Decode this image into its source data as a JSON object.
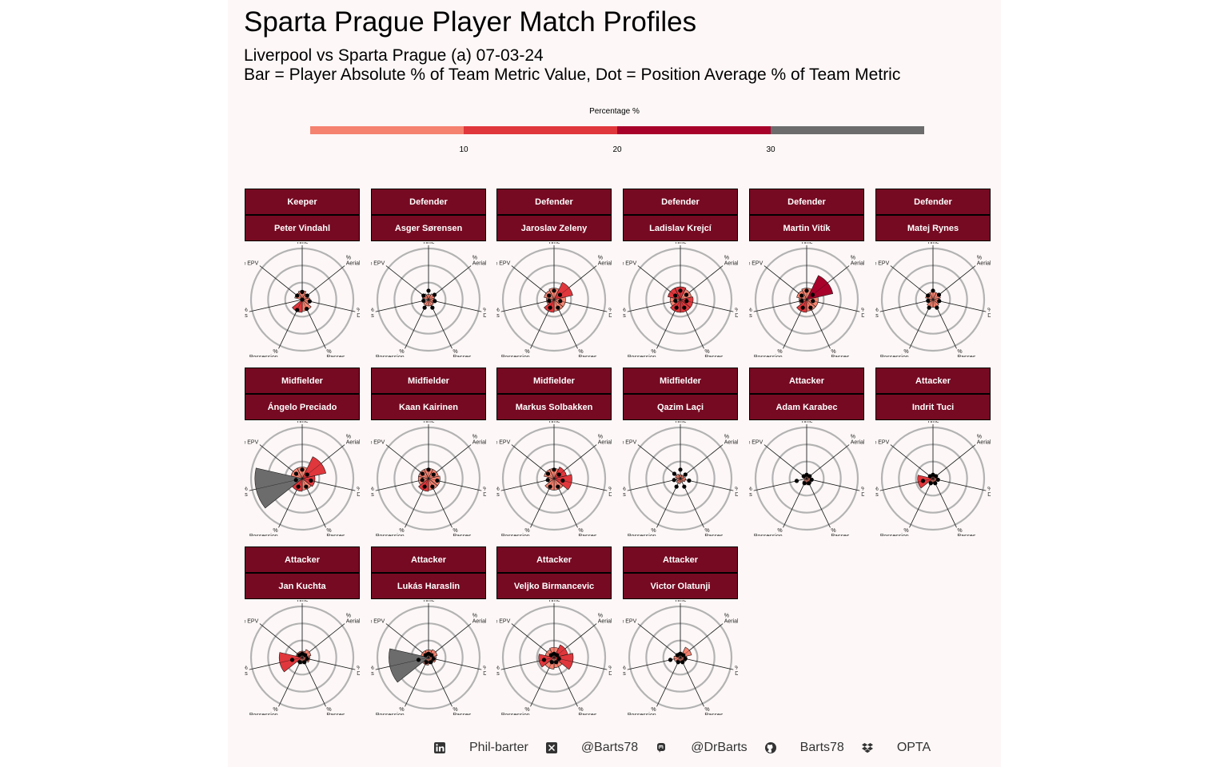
{
  "title": "Sparta Prague Player Match Profiles",
  "subtitle_line1": "Liverpool vs Sparta Prague (a) 07-03-24",
  "subtitle_line2": "Bar = Player Absolute % of Team Metric Value, Dot = Position Average % of Team Metric",
  "legend": {
    "title": "Percentage %",
    "breaks": [
      "10",
      "20",
      "30"
    ],
    "colors": [
      "#f4826f",
      "#e0373c",
      "#a8022a",
      "#6c6c6c"
    ]
  },
  "chart_data": {
    "type": "polar-bar",
    "axes": [
      "% On Ball Time",
      "% Aerials",
      "% Duels",
      "% Passes",
      "% Possession",
      "% Shots",
      "% EPV"
    ],
    "axis_short_labels": [
      "% On\nBall\nTime",
      "%\nAerials",
      "%\nDuels",
      "%\nPasses",
      "%\nPossession",
      "%\nShots",
      "% EPV"
    ],
    "value_range": [
      0,
      40
    ],
    "grid": true,
    "players": [
      {
        "position": "Keeper",
        "name": "Peter Vindahl",
        "values": [
          7,
          5,
          6,
          9,
          10,
          0,
          6
        ],
        "position_avg": [
          6,
          5,
          6,
          8,
          9,
          0,
          5
        ]
      },
      {
        "position": "Defender",
        "name": "Asger Sørensen",
        "values": [
          4,
          5,
          4,
          5,
          5,
          0,
          5
        ],
        "position_avg": [
          7,
          6,
          5,
          7,
          7,
          4,
          5
        ]
      },
      {
        "position": "Defender",
        "name": "Jaroslav Zeleny",
        "values": [
          9,
          15,
          9,
          9,
          10,
          6,
          8
        ],
        "position_avg": [
          7,
          6,
          5,
          7,
          7,
          4,
          5
        ]
      },
      {
        "position": "Defender",
        "name": "Ladislav Krejcí",
        "values": [
          10,
          9,
          10,
          10,
          10,
          8,
          10
        ],
        "position_avg": [
          7,
          6,
          5,
          7,
          7,
          4,
          5
        ]
      },
      {
        "position": "Defender",
        "name": "Martin Vitík",
        "values": [
          9,
          21,
          9,
          9,
          10,
          6,
          8
        ],
        "position_avg": [
          7,
          6,
          5,
          7,
          7,
          4,
          5
        ]
      },
      {
        "position": "Defender",
        "name": "Matej Rynes",
        "values": [
          6,
          6,
          5,
          6,
          6,
          3,
          6
        ],
        "position_avg": [
          7,
          6,
          5,
          7,
          7,
          4,
          5
        ]
      },
      {
        "position": "Midfielder",
        "name": "Ángelo Preciado",
        "values": [
          9,
          19,
          10,
          9,
          10,
          37,
          9
        ],
        "position_avg": [
          7,
          5,
          7,
          7,
          7,
          5,
          6
        ]
      },
      {
        "position": "Midfielder",
        "name": "Kaan Kairinen",
        "values": [
          8,
          8,
          9,
          9,
          10,
          8,
          8
        ],
        "position_avg": [
          7,
          5,
          7,
          7,
          7,
          5,
          6
        ]
      },
      {
        "position": "Midfielder",
        "name": "Markus Solbakken",
        "values": [
          8,
          10,
          14,
          9,
          9,
          5,
          8
        ],
        "position_avg": [
          7,
          5,
          7,
          7,
          7,
          5,
          6
        ]
      },
      {
        "position": "Midfielder",
        "name": "Qazim Laçi",
        "values": [
          3,
          3,
          4,
          3,
          4,
          3,
          4
        ],
        "position_avg": [
          7,
          5,
          7,
          7,
          7,
          5,
          6
        ]
      },
      {
        "position": "Attacker",
        "name": "Adam Karabec",
        "values": [
          2,
          3,
          3,
          5,
          4,
          2,
          2
        ],
        "position_avg": [
          3,
          3,
          4,
          4,
          4,
          8,
          3
        ]
      },
      {
        "position": "Attacker",
        "name": "Indrit Tuci",
        "values": [
          2,
          3,
          3,
          3,
          4,
          12,
          2
        ],
        "position_avg": [
          3,
          3,
          4,
          4,
          4,
          8,
          3
        ]
      },
      {
        "position": "Attacker",
        "name": "Jan Kuchta",
        "values": [
          5,
          7,
          6,
          4,
          5,
          18,
          5
        ],
        "position_avg": [
          3,
          3,
          4,
          4,
          4,
          8,
          3
        ]
      },
      {
        "position": "Attacker",
        "name": "Lukás Haraslin",
        "values": [
          6,
          7,
          6,
          5,
          6,
          31,
          6
        ],
        "position_avg": [
          3,
          3,
          4,
          4,
          4,
          8,
          3
        ]
      },
      {
        "position": "Attacker",
        "name": "Veljko Birmancevic",
        "values": [
          8,
          11,
          15,
          8,
          9,
          12,
          7
        ],
        "position_avg": [
          3,
          3,
          4,
          4,
          4,
          8,
          3
        ]
      },
      {
        "position": "Attacker",
        "name": "Victor Olatunji",
        "values": [
          4,
          9,
          5,
          3,
          4,
          5,
          3
        ],
        "position_avg": [
          3,
          3,
          4,
          4,
          4,
          8,
          3
        ]
      }
    ]
  },
  "footer": {
    "linkedin": "Phil-barter",
    "twitter": "@Barts78",
    "mastodon": "@DrBarts",
    "github": "Barts78",
    "data_source": "OPTA"
  }
}
